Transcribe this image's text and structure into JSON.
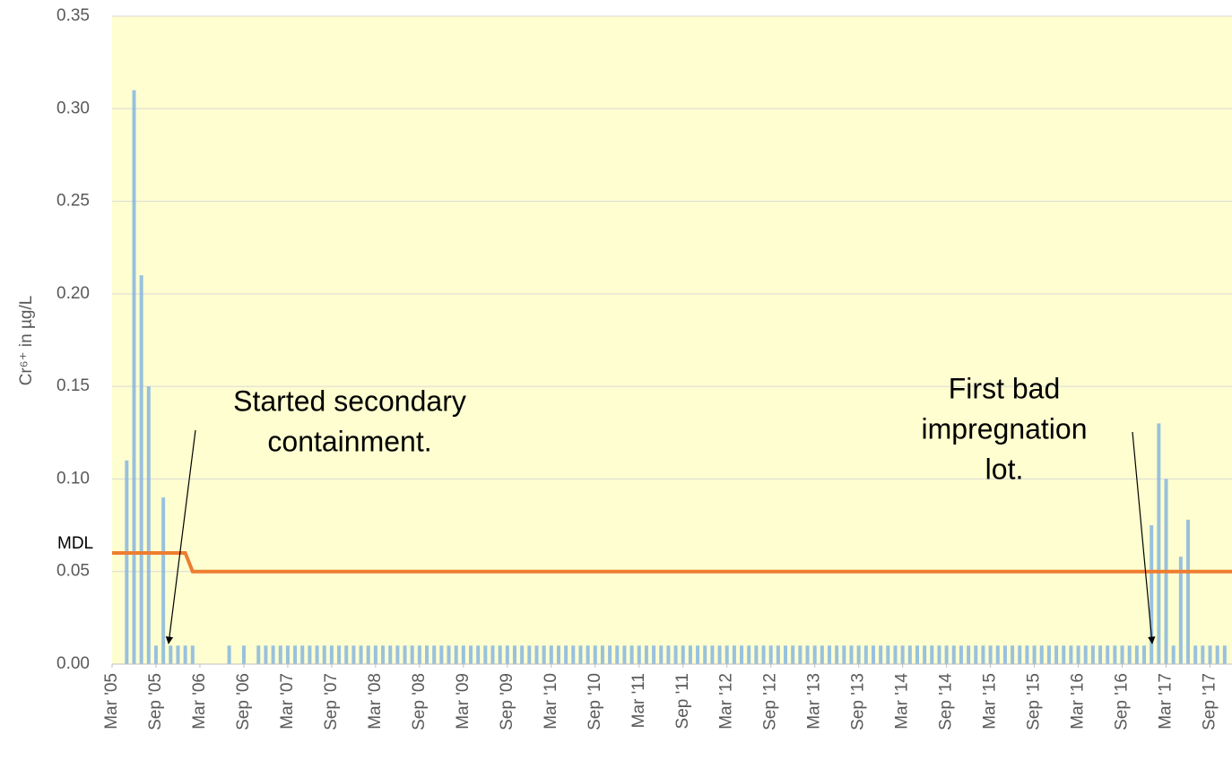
{
  "chart_data": {
    "type": "bar",
    "y_label": "Cr⁶⁺ in µg/L",
    "xlim": [
      "2005-03",
      "2017-12"
    ],
    "xticks": [
      {
        "value": "2005-03",
        "label": "Mar '05"
      },
      {
        "value": "2005-09",
        "label": "Sep '05"
      },
      {
        "value": "2006-03",
        "label": "Mar '06"
      },
      {
        "value": "2006-09",
        "label": "Sep '06"
      },
      {
        "value": "2007-03",
        "label": "Mar '07"
      },
      {
        "value": "2007-09",
        "label": "Sep '07"
      },
      {
        "value": "2008-03",
        "label": "Mar '08"
      },
      {
        "value": "2008-09",
        "label": "Sep '08"
      },
      {
        "value": "2009-03",
        "label": "Mar '09"
      },
      {
        "value": "2009-09",
        "label": "Sep '09"
      },
      {
        "value": "2010-03",
        "label": "Mar '10"
      },
      {
        "value": "2010-09",
        "label": "Sep '10"
      },
      {
        "value": "2011-03",
        "label": "Mar '11"
      },
      {
        "value": "2011-09",
        "label": "Sep '11"
      },
      {
        "value": "2012-03",
        "label": "Mar '12"
      },
      {
        "value": "2012-09",
        "label": "Sep '12"
      },
      {
        "value": "2013-03",
        "label": "Mar '13"
      },
      {
        "value": "2013-09",
        "label": "Sep '13"
      },
      {
        "value": "2014-03",
        "label": "Mar '14"
      },
      {
        "value": "2014-09",
        "label": "Sep '14"
      },
      {
        "value": "2015-03",
        "label": "Mar '15"
      },
      {
        "value": "2015-09",
        "label": "Sep '15"
      },
      {
        "value": "2016-03",
        "label": "Mar '16"
      },
      {
        "value": "2016-09",
        "label": "Sep '16"
      },
      {
        "value": "2017-03",
        "label": "Mar '17"
      },
      {
        "value": "2017-09",
        "label": "Sep '17"
      }
    ],
    "ylim": [
      0,
      0.35
    ],
    "yticks": [
      {
        "value": 0,
        "label": "0.00"
      },
      0.05,
      {
        "value": 0.1,
        "label": "0.10"
      },
      0.15,
      {
        "value": 0.2,
        "label": "0.20"
      },
      0.25,
      {
        "value": 0.3,
        "label": "0.30"
      },
      0.35
    ],
    "grid": true,
    "plot_background": "#fefed0",
    "series": [
      {
        "color": "#7eb1e0",
        "x": [
          "2005-04",
          "2005-05",
          "2005-06",
          "2005-07",
          "2005-08",
          "2005-09",
          "2005-10",
          "2005-11",
          "2005-12",
          "2006-01",
          "2006-02",
          "2006-03",
          "2006-04",
          "2006-05",
          "2006-06",
          "2006-07",
          "2006-08",
          "2006-09",
          "2006-10",
          "2006-11",
          "2006-12",
          "2007-01",
          "2007-02",
          "2007-03",
          "2007-04",
          "2007-05",
          "2007-06",
          "2007-07",
          "2007-08",
          "2007-09",
          "2007-10",
          "2007-11",
          "2007-12",
          "2008-01",
          "2008-02",
          "2008-03",
          "2008-04",
          "2008-05",
          "2008-06",
          "2008-07",
          "2008-08",
          "2008-09",
          "2008-10",
          "2008-11",
          "2008-12",
          "2009-01",
          "2009-02",
          "2009-03",
          "2009-04",
          "2009-05",
          "2009-06",
          "2009-07",
          "2009-08",
          "2009-09",
          "2009-10",
          "2009-11",
          "2009-12",
          "2010-01",
          "2010-02",
          "2010-03",
          "2010-04",
          "2010-05",
          "2010-06",
          "2010-07",
          "2010-08",
          "2010-09",
          "2010-10",
          "2010-11",
          "2010-12",
          "2011-01",
          "2011-02",
          "2011-03",
          "2011-04",
          "2011-05",
          "2011-06",
          "2011-07",
          "2011-08",
          "2011-09",
          "2011-10",
          "2011-11",
          "2011-12",
          "2012-01",
          "2012-02",
          "2012-03",
          "2012-04",
          "2012-05",
          "2012-06",
          "2012-07",
          "2012-08",
          "2012-09",
          "2012-10",
          "2012-11",
          "2012-12",
          "2013-01",
          "2013-02",
          "2013-03",
          "2013-04",
          "2013-05",
          "2013-06",
          "2013-07",
          "2013-08",
          "2013-09",
          "2013-10",
          "2013-11",
          "2013-12",
          "2014-01",
          "2014-02",
          "2014-03",
          "2014-04",
          "2014-05",
          "2014-06",
          "2014-07",
          "2014-08",
          "2014-09",
          "2014-10",
          "2014-11",
          "2014-12",
          "2015-01",
          "2015-02",
          "2015-03",
          "2015-04",
          "2015-05",
          "2015-06",
          "2015-07",
          "2015-08",
          "2015-09",
          "2015-10",
          "2015-11",
          "2015-12",
          "2016-01",
          "2016-02",
          "2016-03",
          "2016-04",
          "2016-05",
          "2016-06",
          "2016-07",
          "2016-08",
          "2016-09",
          "2016-10",
          "2016-11",
          "2016-12",
          "2017-01",
          "2017-02",
          "2017-03",
          "2017-04",
          "2017-05",
          "2017-06",
          "2017-07",
          "2017-08",
          "2017-09",
          "2017-10",
          "2017-11"
        ],
        "values": [
          0,
          0.11,
          0.31,
          0.21,
          0.15,
          0.01,
          0.09,
          0.01,
          0.01,
          0.01,
          0.01,
          0,
          0,
          0,
          0,
          0.01,
          0,
          0.01,
          0,
          0.01,
          0.01,
          0.01,
          0.01,
          0.01,
          0.01,
          0.01,
          0.01,
          0.01,
          0.01,
          0.01,
          0.01,
          0.01,
          0.01,
          0.01,
          0.01,
          0.01,
          0.01,
          0.01,
          0.01,
          0.01,
          0.01,
          0.01,
          0.01,
          0.01,
          0.01,
          0.01,
          0.01,
          0.01,
          0.01,
          0.01,
          0.01,
          0.01,
          0.01,
          0.01,
          0.01,
          0.01,
          0.01,
          0.01,
          0.01,
          0.01,
          0.01,
          0.01,
          0.01,
          0.01,
          0.01,
          0.01,
          0.01,
          0.01,
          0.01,
          0.01,
          0.01,
          0.01,
          0.01,
          0.01,
          0.01,
          0.01,
          0.01,
          0.01,
          0.01,
          0.01,
          0.01,
          0.01,
          0.01,
          0.01,
          0.01,
          0.01,
          0.01,
          0.01,
          0.01,
          0.01,
          0.01,
          0.01,
          0.01,
          0.01,
          0.01,
          0.01,
          0.01,
          0.01,
          0.01,
          0.01,
          0.01,
          0.01,
          0.01,
          0.01,
          0.01,
          0.01,
          0.01,
          0.01,
          0.01,
          0.01,
          0.01,
          0.01,
          0.01,
          0.01,
          0.01,
          0.01,
          0.01,
          0.01,
          0.01,
          0.01,
          0.01,
          0.01,
          0.01,
          0.01,
          0.01,
          0.01,
          0.01,
          0.01,
          0.01,
          0.01,
          0.01,
          0.01,
          0.01,
          0.01,
          0.01,
          0.01,
          0.01,
          0.01,
          0.01,
          0.01,
          0.01,
          0.075,
          0.13,
          0.1,
          0.01,
          0.058,
          0.078,
          0.01,
          0.01,
          0.01,
          0.01,
          0.01
        ]
      },
      {
        "type": "line",
        "name": "MDL",
        "color": "#ed7d31",
        "x": [
          "2005-03",
          "2006-01",
          "2006-02",
          "2017-12"
        ],
        "values": [
          0.06,
          0.06,
          0.05,
          0.05
        ]
      }
    ],
    "annotations": [
      {
        "lines": [
          "Started secondary",
          "containment."
        ]
      },
      {
        "lines": [
          "First bad",
          "impregnation",
          "lot."
        ]
      }
    ]
  }
}
